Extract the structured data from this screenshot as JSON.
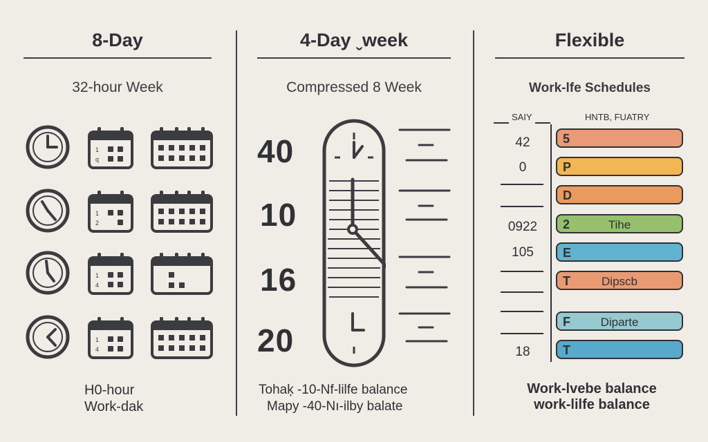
{
  "columns": [
    {
      "title": "8-Day",
      "subtitle": "32-hour Week",
      "footer_lines": [
        "H0-hour",
        "Work-dak"
      ],
      "calendar_small_marks": [
        [
          "1",
          "q"
        ],
        [
          "1",
          "2"
        ],
        [
          "1",
          "4"
        ],
        [
          "1",
          "4"
        ]
      ]
    },
    {
      "title": "4-Day ˬweek",
      "subtitle": "Compressed 8 Week",
      "numbers": [
        "40",
        "10",
        "16",
        "20"
      ],
      "footer_lines": [
        "Tohaķ -10-Nf-lilfe  balance",
        "Mapy -40-Nı-ilby  balate"
      ]
    },
    {
      "title": "Flexible",
      "subtitle": "Work-lfe Schedules",
      "table_header_left": "SAIY",
      "table_header_right": "HNTB, FUATRY",
      "rows": [
        {
          "value": "42",
          "code": "5",
          "word": "",
          "color": "#ea9a76"
        },
        {
          "value": "0",
          "code": "P",
          "word": "",
          "color": "#f2b652"
        },
        {
          "value": "",
          "code": "D",
          "word": "",
          "color": "#ea9a5d"
        },
        {
          "value": "0922",
          "code": "2",
          "word": "Tihe",
          "color": "#97c06c"
        },
        {
          "value": "105",
          "code": "E",
          "word": "",
          "color": "#62b3cf"
        },
        {
          "value": "",
          "code": "T",
          "word": "Dipscb",
          "color": "#ea9a73"
        },
        {
          "value": "",
          "code": "F",
          "word": "Diparte",
          "color": "#96c9d0"
        },
        {
          "value": "18",
          "code": "T",
          "word": "",
          "color": "#58a9cb"
        }
      ],
      "footer_lines": [
        "Work-lvebe balance",
        "work-lilfe balance"
      ]
    }
  ],
  "colors": {
    "background": "#f0ece6",
    "ink": "#2f3136"
  }
}
